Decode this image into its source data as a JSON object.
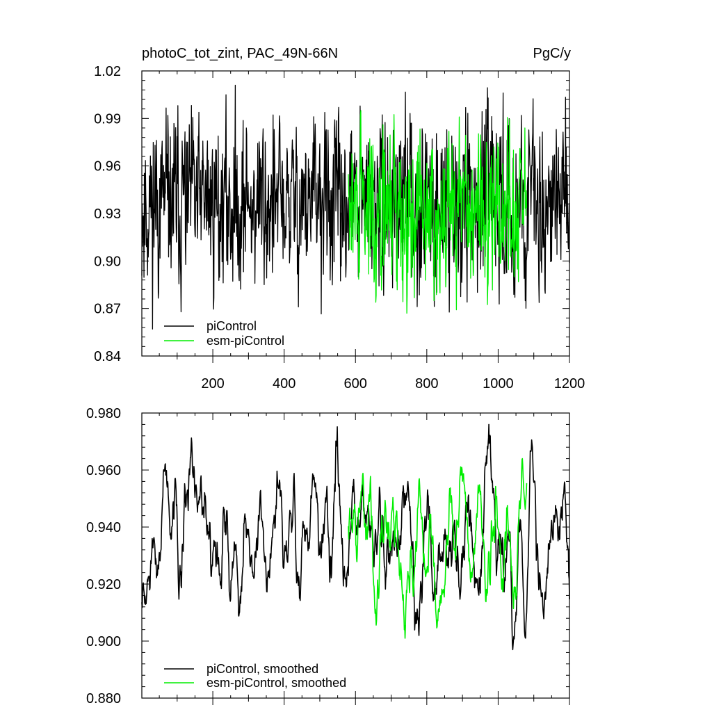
{
  "chart_data": [
    {
      "type": "line",
      "title": "photoC_tot_zint, PAC_49N-66N",
      "units": "PgC/y",
      "xlabel": "",
      "ylabel": "",
      "xlim": [
        1,
        1200
      ],
      "ylim": [
        0.84,
        1.02
      ],
      "xticks": [
        200,
        400,
        600,
        800,
        1000,
        1200
      ],
      "yticks": [
        0.84,
        0.87,
        0.9,
        0.93,
        0.96,
        0.99,
        1.02
      ],
      "ytick_labels": [
        "0.84",
        "0.87",
        "0.90",
        "0.93",
        "0.96",
        "0.99",
        "1.02"
      ],
      "grid": false,
      "legend_position": "bottom-left",
      "series": [
        {
          "name": "piControl",
          "color": "#000000",
          "x_range": [
            1,
            1200
          ],
          "mean": 0.935,
          "spread": 0.022,
          "min": 0.857,
          "max": 1.011,
          "seed": 11,
          "values": []
        },
        {
          "name": "esm-piControl",
          "color": "#00ee00",
          "x_range": [
            580,
            1080
          ],
          "mean": 0.932,
          "spread": 0.026,
          "min": 0.867,
          "max": 0.995,
          "seed": 29,
          "values": []
        }
      ]
    },
    {
      "type": "line",
      "title": "",
      "xlabel": "",
      "ylabel": "",
      "xlim": [
        1,
        1200
      ],
      "ylim": [
        0.88,
        0.98
      ],
      "xticks": [
        200,
        400,
        600,
        800,
        1000,
        1200
      ],
      "yticks": [
        0.88,
        0.9,
        0.92,
        0.94,
        0.96,
        0.98
      ],
      "ytick_labels": [
        "0.880",
        "0.900",
        "0.920",
        "0.940",
        "0.960",
        "0.980"
      ],
      "grid": false,
      "legend_position": "bottom-left",
      "series": [
        {
          "name": "piControl, smoothed",
          "color": "#000000",
          "x_range": [
            1,
            1200
          ],
          "mean": 0.935,
          "spread": 0.014,
          "min": 0.897,
          "max": 0.976,
          "seed": 11,
          "values": []
        },
        {
          "name": "esm-piControl, smoothed",
          "color": "#00ee00",
          "x_range": [
            580,
            1080
          ],
          "mean": 0.932,
          "spread": 0.014,
          "min": 0.901,
          "max": 0.964,
          "seed": 29,
          "values": []
        }
      ]
    }
  ]
}
